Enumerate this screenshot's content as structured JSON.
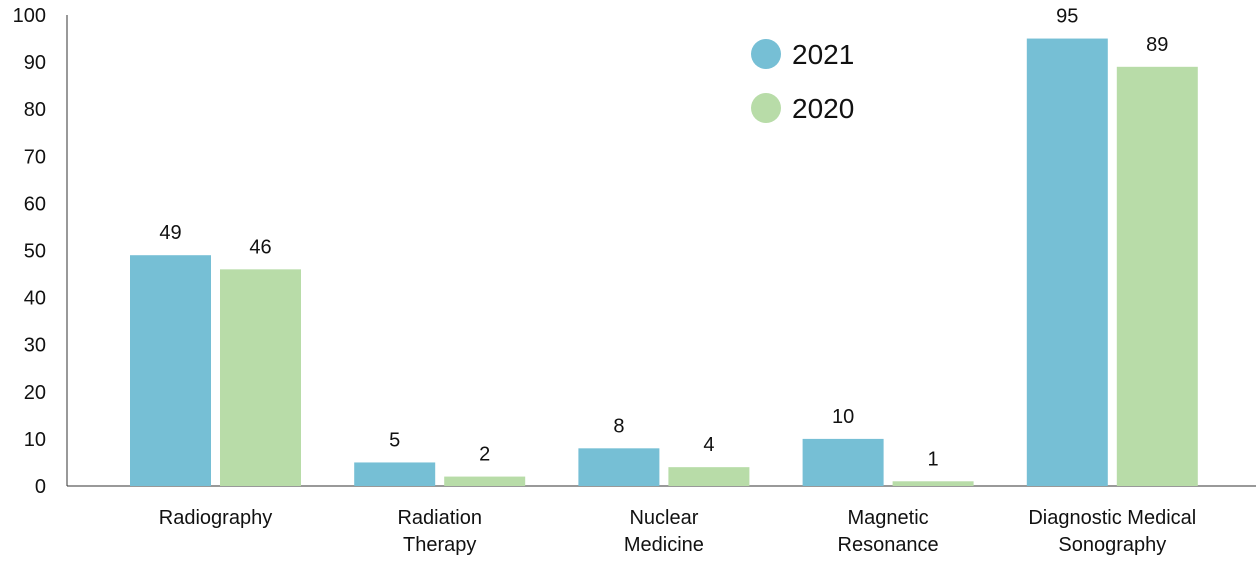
{
  "chart_data": {
    "type": "bar",
    "title": "",
    "xlabel": "",
    "ylabel": "",
    "ylim": [
      0,
      100
    ],
    "yticks": [
      0,
      10,
      20,
      30,
      40,
      50,
      60,
      70,
      80,
      90,
      100
    ],
    "grid": false,
    "legend_placement": "top-center",
    "categories": [
      [
        "Radiography"
      ],
      [
        "Radiation",
        "Therapy"
      ],
      [
        "Nuclear",
        "Medicine"
      ],
      [
        "Magnetic",
        "Resonance"
      ],
      [
        "Diagnostic Medical",
        "Sonography"
      ]
    ],
    "series": [
      {
        "name": "2021",
        "color": "#76bfd5",
        "values": [
          49,
          5,
          8,
          10,
          95
        ]
      },
      {
        "name": "2020",
        "color": "#b8dca8",
        "values": [
          46,
          2,
          4,
          1,
          89
        ]
      }
    ],
    "axis_color": "#333333"
  }
}
